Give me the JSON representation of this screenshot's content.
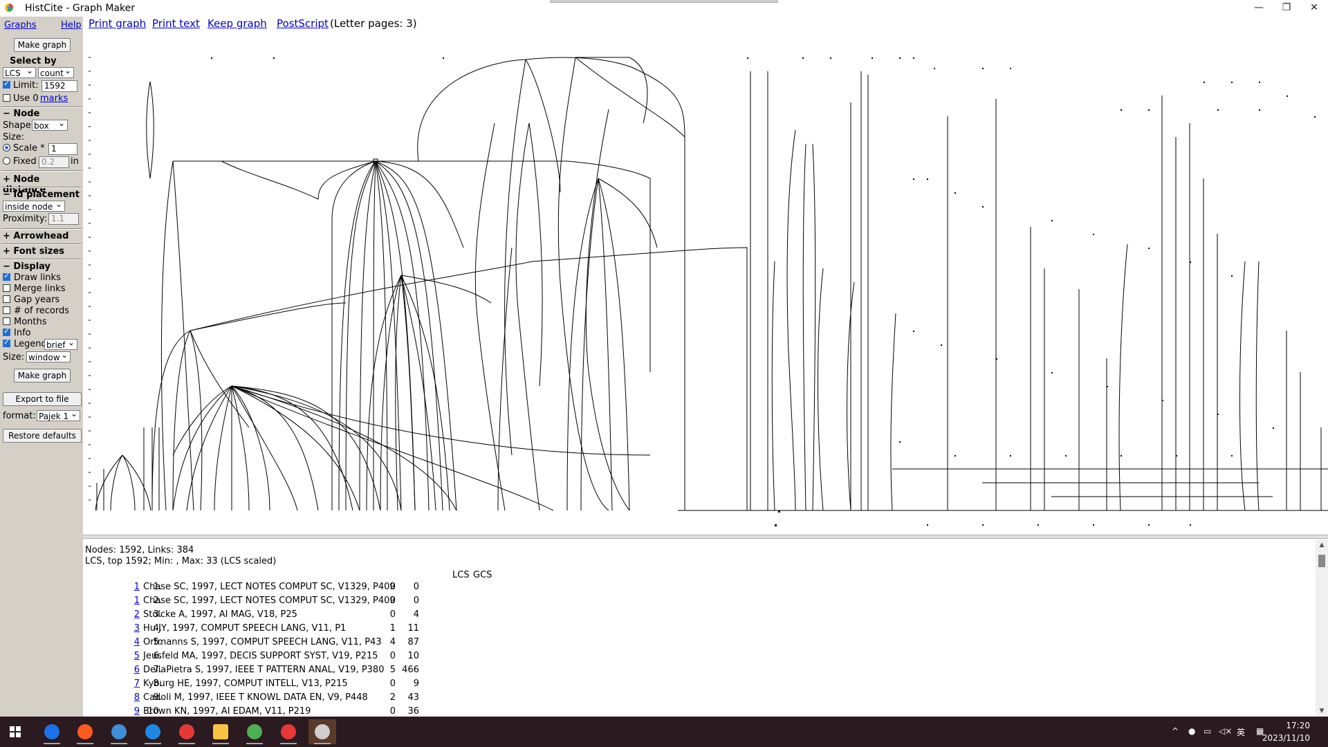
{
  "window": {
    "title": "HistCite - Graph Maker",
    "btn_min": "—",
    "btn_restore": "❐",
    "btn_close": "✕"
  },
  "left": {
    "graphs_link": "Graphs",
    "help_link": "Help",
    "make_graph": "Make graph",
    "select_by": "Select by",
    "select_field": "LCS",
    "select_order": "count",
    "limit_label": "Limit:",
    "limit_value": "1592",
    "use_label": "Use 0",
    "marks_link": "marks",
    "node_header": "− Node",
    "shape_label": "Shape:",
    "shape_value": "box",
    "size_label": "Size:",
    "scale_label": "Scale *",
    "scale_value": "1",
    "fixed_label": "Fixed",
    "fixed_value": "0.2",
    "fixed_unit": "in",
    "node_distance": "+ Node distance",
    "id_placement": "− Id placement",
    "id_placement_value": "inside node",
    "proximity_label": "Proximity:",
    "proximity_value": "1.1",
    "arrowhead": "+ Arrowhead",
    "font_sizes": "+ Font sizes",
    "display_header": "− Display",
    "draw_links": "Draw links",
    "merge_links": "Merge links",
    "gap_years": "Gap years",
    "num_records": "# of records",
    "months": "Months",
    "info": "Info",
    "legend": "Legend",
    "legend_value": "brief",
    "size2_label": "Size:",
    "size2_value": "window",
    "make_graph2": "Make graph",
    "export": "Export to file",
    "format_label": "format:",
    "format_value": "Pajek 1",
    "restore": "Restore defaults"
  },
  "toolbar": {
    "print_graph": "Print graph",
    "print_text": "Print text",
    "keep_graph": "Keep graph",
    "postscript": "PostScript",
    "pages": "(Letter pages: 3)"
  },
  "info": {
    "line1": "Nodes: 1592, Links: 384",
    "line2": "LCS, top 1592; Min: , Max: 33 (LCS scaled)",
    "col_lcs": "LCS",
    "col_gcs": "GCS",
    "rows": [
      {
        "num": "1.",
        "id": "1",
        "ref": "Chase SC, 1997, LECT NOTES COMPUT SC, V1329, P409",
        "lcs": "0",
        "gcs": "0"
      },
      {
        "num": "2.",
        "id": "1",
        "ref": "Chase SC, 1997, LECT NOTES COMPUT SC, V1329, P409",
        "lcs": "0",
        "gcs": "0"
      },
      {
        "num": "3.",
        "id": "2",
        "ref": "Stolcke A, 1997, AI MAG, V18, P25",
        "lcs": "0",
        "gcs": "4"
      },
      {
        "num": "4.",
        "id": "3",
        "ref": "Hu JY, 1997, COMPUT SPEECH LANG, V11, P1",
        "lcs": "1",
        "gcs": "11"
      },
      {
        "num": "5.",
        "id": "4",
        "ref": "Ortmanns S, 1997, COMPUT SPEECH LANG, V11, P43",
        "lcs": "4",
        "gcs": "87"
      },
      {
        "num": "6.",
        "id": "5",
        "ref": "Jeusfeld MA, 1997, DECIS SUPPORT SYST, V19, P215",
        "lcs": "0",
        "gcs": "10"
      },
      {
        "num": "7.",
        "id": "6",
        "ref": "DellaPietra S, 1997, IEEE T PATTERN ANAL, V19, P380",
        "lcs": "5",
        "gcs": "466"
      },
      {
        "num": "8.",
        "id": "7",
        "ref": "Kyburg HE, 1997, COMPUT INTELL, V13, P215",
        "lcs": "0",
        "gcs": "9"
      },
      {
        "num": "9.",
        "id": "8",
        "ref": "Cadoli M, 1997, IEEE T KNOWL DATA EN, V9, P448",
        "lcs": "2",
        "gcs": "43"
      },
      {
        "num": "10.",
        "id": "9",
        "ref": "Brown KN, 1997, AI EDAM, V11, P219",
        "lcs": "0",
        "gcs": "36"
      }
    ]
  },
  "taskbar": {
    "time": "17:20",
    "date": "2023/11/10",
    "ime": "英",
    "colors": [
      "#1a73e8",
      "#ff5a1f",
      "#3d8fd6",
      "#1e88e5",
      "#e53935",
      "#f6c343",
      "#4caf50",
      "#e53935",
      "#cfcfcf"
    ]
  }
}
